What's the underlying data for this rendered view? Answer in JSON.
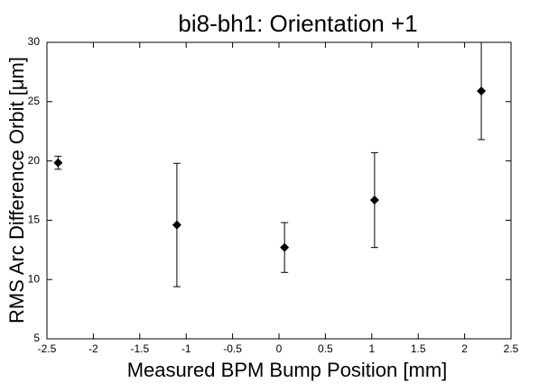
{
  "chart_data": {
    "type": "scatter",
    "title": "bi8-bh1: Orientation +1",
    "x_label": "Measured BPM Bump Position [mm]",
    "y_label": "RMS Arc Difference Orbit [μm]",
    "x": [
      -2.38,
      -1.1,
      0.06,
      1.03,
      2.18
    ],
    "values": [
      19.85,
      14.6,
      12.7,
      16.7,
      25.9
    ],
    "errors": [
      0.55,
      5.2,
      2.1,
      4.0,
      4.1
    ],
    "color": "#000000",
    "xlim": [
      -2.5,
      2.5
    ],
    "xticks": [
      -2.5,
      -2,
      -1.5,
      -1,
      -0.5,
      0,
      0.5,
      1,
      1.5,
      2,
      2.5
    ],
    "ylim": [
      5,
      30
    ],
    "yticks": [
      5,
      10,
      15,
      20,
      25,
      30
    ]
  }
}
